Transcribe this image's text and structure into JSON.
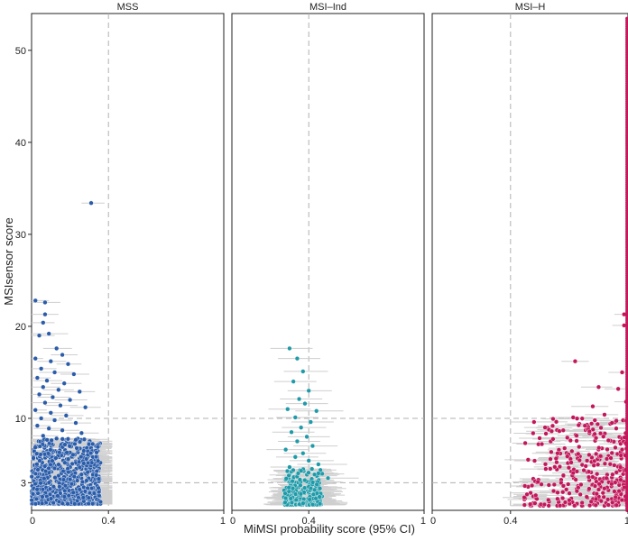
{
  "chart_data": {
    "type": "scatter",
    "xlabel": "MiMSI probability score (95% CI)",
    "ylabel": "MSIsensor score",
    "ylim": [
      0,
      54
    ],
    "xlim": [
      0,
      1
    ],
    "y_ticks": [
      "3",
      "10",
      "20",
      "30",
      "40",
      "50"
    ],
    "x_tick_labels": [
      "0",
      "0.4",
      "1"
    ],
    "reference_lines": {
      "x": 0.4,
      "y": [
        3,
        10
      ]
    },
    "panels": [
      {
        "name": "MSS",
        "color": "#2a5caa",
        "points": [
          [
            0.31,
            33.4,
            0.26,
            0.38
          ],
          [
            0.02,
            22.8,
            0.0,
            0.09
          ],
          [
            0.07,
            22.6,
            0.0,
            0.15
          ],
          [
            0.07,
            21.3,
            0.0,
            0.14
          ],
          [
            0.06,
            20.4,
            0.0,
            0.12
          ],
          [
            0.09,
            19.2,
            0.0,
            0.19
          ],
          [
            0.04,
            19.0,
            0.0,
            0.12
          ],
          [
            0.13,
            17.6,
            0.06,
            0.21
          ],
          [
            0.16,
            16.9,
            0.1,
            0.24
          ],
          [
            0.02,
            16.5,
            0.0,
            0.06
          ],
          [
            0.1,
            16.2,
            0.03,
            0.18
          ],
          [
            0.19,
            15.9,
            0.13,
            0.26
          ],
          [
            0.05,
            15.4,
            0.0,
            0.13
          ],
          [
            0.12,
            15.0,
            0.04,
            0.22
          ],
          [
            0.22,
            14.8,
            0.15,
            0.3
          ],
          [
            0.03,
            14.4,
            0.0,
            0.1
          ],
          [
            0.08,
            14.1,
            0.01,
            0.16
          ],
          [
            0.17,
            13.8,
            0.1,
            0.26
          ],
          [
            0.06,
            13.4,
            0.0,
            0.15
          ],
          [
            0.14,
            13.1,
            0.06,
            0.22
          ],
          [
            0.25,
            12.9,
            0.17,
            0.33
          ],
          [
            0.04,
            12.6,
            0.0,
            0.11
          ],
          [
            0.11,
            12.3,
            0.03,
            0.2
          ],
          [
            0.2,
            12.0,
            0.12,
            0.29
          ],
          [
            0.07,
            11.7,
            0.0,
            0.15
          ],
          [
            0.15,
            11.4,
            0.07,
            0.24
          ],
          [
            0.28,
            11.2,
            0.2,
            0.36
          ],
          [
            0.02,
            10.9,
            0.0,
            0.08
          ],
          [
            0.1,
            10.6,
            0.02,
            0.19
          ],
          [
            0.18,
            10.3,
            0.1,
            0.27
          ],
          [
            0.05,
            10.0,
            0.0,
            0.13
          ],
          [
            0.12,
            9.8,
            0.04,
            0.21
          ],
          [
            0.23,
            9.5,
            0.15,
            0.31
          ],
          [
            0.03,
            9.2,
            0.0,
            0.1
          ],
          [
            0.09,
            8.9,
            0.01,
            0.17
          ],
          [
            0.16,
            8.7,
            0.08,
            0.25
          ],
          [
            0.26,
            8.4,
            0.18,
            0.35
          ],
          [
            0.06,
            8.1,
            0.0,
            0.14
          ],
          [
            0.13,
            7.8,
            0.05,
            0.22
          ]
        ],
        "dense": {
          "x_range": [
            0,
            0.36
          ],
          "y_range": [
            0.7,
            7.8
          ],
          "ci_to": 0.42
        }
      },
      {
        "name": "MSI–Ind",
        "color": "#1f9aa8",
        "points": [
          [
            0.3,
            17.6,
            0.2,
            0.42
          ],
          [
            0.34,
            16.5,
            0.24,
            0.46
          ],
          [
            0.37,
            15.1,
            0.27,
            0.5
          ],
          [
            0.32,
            14.0,
            0.22,
            0.44
          ],
          [
            0.4,
            13.0,
            0.29,
            0.52
          ],
          [
            0.35,
            12.1,
            0.25,
            0.47
          ],
          [
            0.38,
            11.6,
            0.28,
            0.5
          ],
          [
            0.29,
            11.0,
            0.19,
            0.41
          ],
          [
            0.44,
            10.8,
            0.33,
            0.58
          ],
          [
            0.33,
            10.1,
            0.23,
            0.45
          ],
          [
            0.41,
            9.6,
            0.31,
            0.53
          ],
          [
            0.36,
            9.0,
            0.26,
            0.49
          ],
          [
            0.31,
            8.5,
            0.21,
            0.43
          ],
          [
            0.39,
            8.0,
            0.29,
            0.51
          ],
          [
            0.34,
            7.5,
            0.24,
            0.46
          ],
          [
            0.42,
            7.0,
            0.32,
            0.55
          ],
          [
            0.28,
            6.6,
            0.18,
            0.4
          ],
          [
            0.37,
            6.2,
            0.27,
            0.49
          ],
          [
            0.33,
            5.8,
            0.23,
            0.45
          ],
          [
            0.4,
            5.4,
            0.3,
            0.53
          ],
          [
            0.45,
            5.0,
            0.34,
            0.6
          ],
          [
            0.3,
            4.7,
            0.2,
            0.42
          ],
          [
            0.36,
            4.3,
            0.26,
            0.48
          ],
          [
            0.43,
            3.9,
            0.33,
            0.56
          ],
          [
            0.5,
            3.5,
            0.38,
            0.66
          ]
        ],
        "dense": {
          "x_range": [
            0.27,
            0.47
          ],
          "y_range": [
            0.6,
            4.5
          ],
          "ci_to": 0.7
        }
      },
      {
        "name": "MSI–H",
        "color": "#c2185b",
        "points": [
          [
            0.73,
            16.2,
            0.66,
            0.8
          ],
          [
            0.98,
            21.3,
            0.93,
            1.0
          ],
          [
            0.98,
            20.1,
            0.92,
            1.0
          ],
          [
            0.85,
            13.4,
            0.76,
            0.92
          ],
          [
            0.95,
            13.2,
            0.88,
            1.0
          ],
          [
            0.97,
            15.0,
            0.9,
            1.0
          ],
          [
            0.82,
            11.3,
            0.71,
            0.9
          ],
          [
            0.99,
            11.8,
            0.93,
            1.0
          ],
          [
            0.72,
            10.1,
            0.6,
            0.82
          ],
          [
            0.88,
            10.4,
            0.78,
            0.95
          ],
          [
            0.52,
            9.6,
            0.4,
            0.64
          ],
          [
            0.78,
            9.2,
            0.66,
            0.88
          ],
          [
            0.94,
            8.9,
            0.85,
            1.0
          ],
          [
            0.61,
            8.6,
            0.48,
            0.73
          ],
          [
            0.83,
            8.3,
            0.72,
            0.92
          ],
          [
            0.69,
            7.9,
            0.56,
            0.8
          ],
          [
            0.9,
            7.6,
            0.8,
            0.97
          ],
          [
            0.56,
            7.2,
            0.43,
            0.68
          ],
          [
            0.75,
            6.9,
            0.63,
            0.86
          ],
          [
            0.97,
            6.6,
            0.9,
            1.0
          ],
          [
            0.64,
            6.2,
            0.51,
            0.76
          ],
          [
            0.86,
            5.9,
            0.75,
            0.95
          ],
          [
            0.49,
            5.5,
            0.37,
            0.61
          ],
          [
            0.71,
            5.2,
            0.58,
            0.82
          ],
          [
            0.93,
            4.9,
            0.84,
            1.0
          ],
          [
            0.58,
            4.5,
            0.45,
            0.7
          ],
          [
            0.8,
            4.2,
            0.68,
            0.9
          ],
          [
            0.67,
            3.8,
            0.54,
            0.78
          ],
          [
            0.89,
            3.5,
            0.79,
            0.96
          ],
          [
            0.54,
            3.1,
            0.41,
            0.66
          ],
          [
            0.76,
            2.8,
            0.63,
            0.87
          ],
          [
            0.98,
            2.5,
            0.92,
            1.0
          ],
          [
            0.62,
            2.1,
            0.49,
            0.74
          ],
          [
            0.84,
            1.8,
            0.72,
            0.93
          ],
          [
            0.47,
            1.4,
            0.36,
            0.59
          ],
          [
            0.7,
            1.1,
            0.57,
            0.81
          ]
        ],
        "dense": {
          "x_range": [
            0.45,
            1.0
          ],
          "y_range": [
            0.5,
            10
          ],
          "ci_to": 1.0
        },
        "edge_column": {
          "x": 1.0,
          "y_range": [
            0,
            53.5
          ]
        }
      }
    ]
  }
}
